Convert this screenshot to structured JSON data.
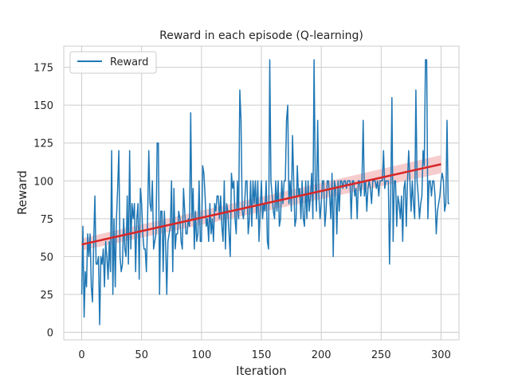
{
  "chart_data": {
    "type": "line",
    "title": "Reward in each episode (Q-learning)",
    "xlabel": "Iteration",
    "ylabel": "Reward",
    "xlim": [
      -15,
      315
    ],
    "ylim": [
      -5,
      189
    ],
    "xticks": [
      0,
      50,
      100,
      150,
      200,
      250,
      300
    ],
    "yticks": [
      0,
      25,
      50,
      75,
      100,
      125,
      150,
      175
    ],
    "grid": true,
    "legend_position": "top-left",
    "series": [
      {
        "name": "Reward",
        "color": "#1f77b4",
        "x_start": 0,
        "values": [
          25,
          70,
          10,
          40,
          30,
          65,
          50,
          65,
          30,
          20,
          60,
          90,
          45,
          45,
          50,
          5,
          50,
          45,
          55,
          30,
          60,
          50,
          35,
          60,
          40,
          120,
          25,
          75,
          30,
          75,
          95,
          120,
          50,
          40,
          45,
          75,
          55,
          50,
          90,
          45,
          120,
          55,
          85,
          75,
          85,
          40,
          75,
          85,
          35,
          95,
          85,
          65,
          55,
          55,
          40,
          75,
          120,
          85,
          80,
          100,
          55,
          60,
          65,
          125,
          125,
          25,
          80,
          80,
          40,
          80,
          60,
          25,
          60,
          65,
          70,
          100,
          40,
          95,
          55,
          65,
          65,
          80,
          75,
          60,
          55,
          95,
          80,
          65,
          65,
          75,
          70,
          145,
          75,
          95,
          55,
          80,
          60,
          65,
          100,
          60,
          60,
          110,
          105,
          90,
          70,
          75,
          60,
          85,
          65,
          75,
          60,
          85,
          80,
          90,
          90,
          75,
          90,
          70,
          60,
          100,
          55,
          85,
          80,
          65,
          50,
          105,
          95,
          100,
          75,
          65,
          100,
          75,
          160,
          140,
          80,
          75,
          85,
          100,
          100,
          65,
          75,
          100,
          70,
          100,
          85,
          100,
          75,
          100,
          60,
          80,
          100,
          75,
          85,
          80,
          100,
          60,
          55,
          180,
          100,
          90,
          80,
          75,
          100,
          80,
          100,
          70,
          75,
          100,
          85,
          100,
          100,
          140,
          150,
          85,
          100,
          80,
          130,
          100,
          70,
          75,
          110,
          90,
          95,
          75,
          100,
          75,
          70,
          100,
          75,
          100,
          80,
          90,
          105,
          75,
          180,
          100,
          80,
          140,
          90,
          75,
          85,
          100,
          100,
          70,
          80,
          100,
          100,
          90,
          75,
          105,
          50,
          100,
          95,
          65,
          100,
          80,
          100,
          100,
          95,
          100,
          100,
          95,
          100,
          100,
          100,
          75,
          100,
          100,
          90,
          95,
          75,
          100,
          100,
          90,
          100,
          140,
          90,
          100,
          80,
          95,
          100,
          95,
          85,
          100,
          100,
          100,
          95,
          100,
          90,
          100,
          100,
          100,
          120,
          95,
          100,
          100,
          100,
          45,
          90,
          155,
          60,
          100,
          100,
          70,
          90,
          85,
          75,
          90,
          60,
          95,
          100,
          70,
          100,
          120,
          100,
          80,
          100,
          85,
          75,
          160,
          100,
          90,
          75,
          85,
          90,
          120,
          110,
          180,
          180,
          75,
          100,
          100,
          90,
          100,
          100,
          90,
          65,
          80,
          85,
          90,
          100,
          105,
          100,
          80,
          85,
          140,
          85,
          85
        ]
      }
    ],
    "trend": {
      "color": "#d62728",
      "band_color": "#f4b6b8",
      "x": [
        0,
        300
      ],
      "y": [
        58,
        111
      ],
      "band_low": [
        54,
        105
      ],
      "band_high": [
        62,
        117
      ]
    }
  }
}
